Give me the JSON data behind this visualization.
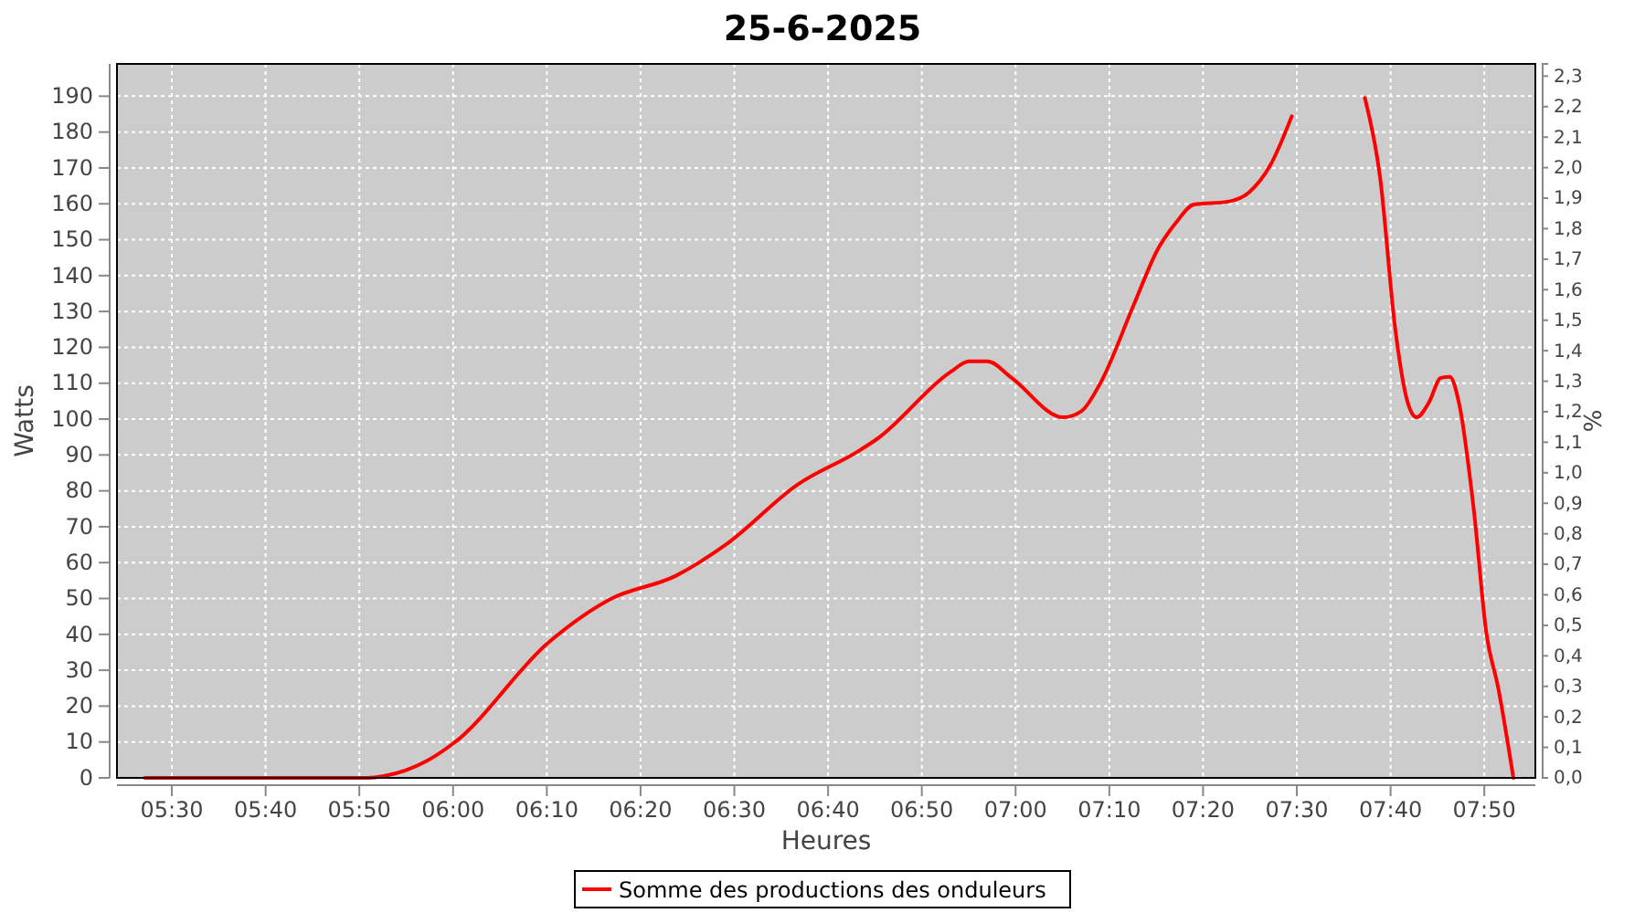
{
  "chart_data": {
    "type": "line",
    "title": "25-6-2025",
    "xlabel": "Heures",
    "ylabel": "Watts",
    "y2label": "%",
    "xlim": [
      5.4025,
      7.924
    ],
    "xticks": [
      {
        "value": 5.5,
        "label": "05:30"
      },
      {
        "value": 5.6667,
        "label": "05:40"
      },
      {
        "value": 5.8333,
        "label": "05:50"
      },
      {
        "value": 6,
        "label": "06:00"
      },
      {
        "value": 6.1667,
        "label": "06:10"
      },
      {
        "value": 6.3333,
        "label": "06:20"
      },
      {
        "value": 6.5,
        "label": "06:30"
      },
      {
        "value": 6.6667,
        "label": "06:40"
      },
      {
        "value": 6.8333,
        "label": "06:50"
      },
      {
        "value": 7,
        "label": "07:00"
      },
      {
        "value": 7.1667,
        "label": "07:10"
      },
      {
        "value": 7.3333,
        "label": "07:20"
      },
      {
        "value": 7.5,
        "label": "07:30"
      },
      {
        "value": 7.6667,
        "label": "07:40"
      },
      {
        "value": 7.8333,
        "label": "07:50"
      }
    ],
    "ylim": [
      0,
      199
    ],
    "yticks": [
      0,
      10,
      20,
      30,
      40,
      50,
      60,
      70,
      80,
      90,
      100,
      110,
      120,
      130,
      140,
      150,
      160,
      170,
      180,
      190
    ],
    "y2lim": [
      0,
      2.34
    ],
    "y2ticks": [
      {
        "value": 0,
        "label": "0,0"
      },
      {
        "value": 0.1,
        "label": "0,1"
      },
      {
        "value": 0.2,
        "label": "0,2"
      },
      {
        "value": 0.3,
        "label": "0,3"
      },
      {
        "value": 0.4,
        "label": "0,4"
      },
      {
        "value": 0.5,
        "label": "0,5"
      },
      {
        "value": 0.6,
        "label": "0,6"
      },
      {
        "value": 0.7,
        "label": "0,7"
      },
      {
        "value": 0.8,
        "label": "0,8"
      },
      {
        "value": 0.9,
        "label": "0,9"
      },
      {
        "value": 1,
        "label": "1,0"
      },
      {
        "value": 1.1,
        "label": "1,1"
      },
      {
        "value": 1.2,
        "label": "1,2"
      },
      {
        "value": 1.3,
        "label": "1,3"
      },
      {
        "value": 1.4,
        "label": "1,4"
      },
      {
        "value": 1.5,
        "label": "1,5"
      },
      {
        "value": 1.6,
        "label": "1,6"
      },
      {
        "value": 1.7,
        "label": "1,7"
      },
      {
        "value": 1.8,
        "label": "1,8"
      },
      {
        "value": 1.9,
        "label": "1,9"
      },
      {
        "value": 2,
        "label": "2,0"
      },
      {
        "value": 2.1,
        "label": "2,1"
      },
      {
        "value": 2.2,
        "label": "2,2"
      },
      {
        "value": 2.3,
        "label": "2,3"
      }
    ],
    "grid": true,
    "legend": "bottom",
    "line_style": "solid",
    "marker": "none",
    "series": [
      {
        "name": "Somme des productions des onduleurs",
        "color": "#ff0000",
        "x": [
          5.452,
          5.848,
          5.877,
          5.953,
          6.002,
          6.17,
          6.278,
          6.397,
          6.484,
          6.614,
          6.722,
          6.755,
          6.885,
          6.917,
          6.95,
          6.993,
          7.085,
          7.117,
          7.15,
          7.21,
          7.252,
          7.285,
          7.317,
          7.377,
          7.415,
          7.453,
          7.491,
          7.518,
          7.55,
          7.6,
          7.621,
          7.648,
          7.675,
          7.697,
          7.713,
          7.735,
          7.756,
          7.772,
          7.788,
          7.815,
          7.837,
          7.858,
          7.885
        ],
        "values": [
          0,
          0,
          0.5,
          4.7,
          9.8,
          37.8,
          49.7,
          56.4,
          64.9,
          81.9,
          91.2,
          94.6,
          113.2,
          116.1,
          116.1,
          111.5,
          100.5,
          102.2,
          109.8,
          131.8,
          147.1,
          154.7,
          159.8,
          160.6,
          163.2,
          170.8,
          184.4,
          null,
          null,
          null,
          189.5,
          167.4,
          125.1,
          104.7,
          100.5,
          104.7,
          111.5,
          111.8,
          104.7,
          74.2,
          40.3,
          25.1,
          0
        ]
      }
    ]
  }
}
